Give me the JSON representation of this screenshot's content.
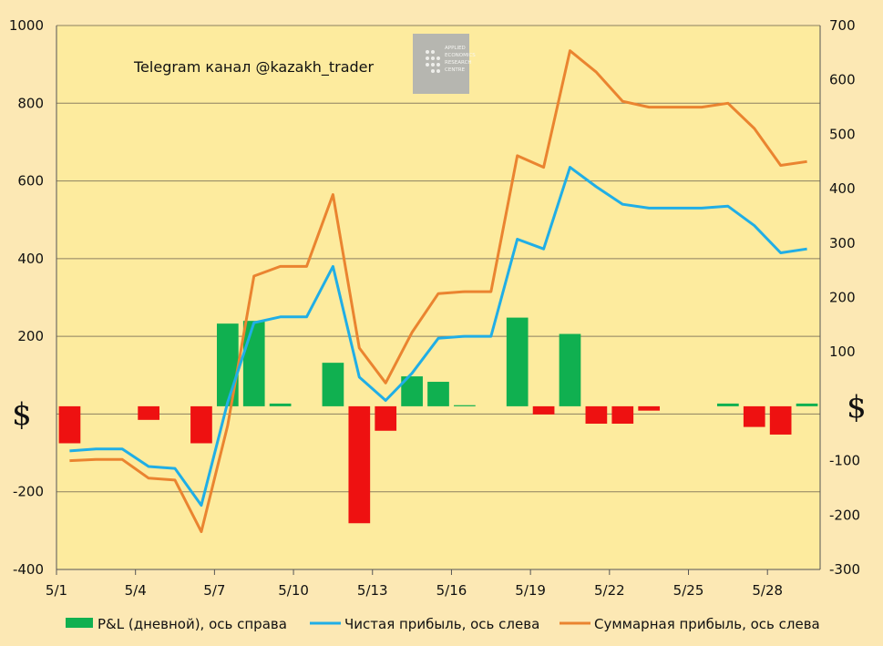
{
  "watermark": {
    "text": "Telegram канал @kazakh_trader",
    "logo_text": "APPLIED ECONOMICS RESEARCH CENTRE"
  },
  "currency_symbol": "$",
  "colors": {
    "outer_bg": "#fce8b4",
    "plot_bg": "#fdeb9e",
    "pnl_positive": "#10b050",
    "pnl_negative": "#ee1111",
    "net_profit": "#20aee6",
    "cumulative_profit": "#ea8430",
    "grid": "#8c8060"
  },
  "chart_data": {
    "type": "bar+line",
    "x_axis_labels": [
      "5/1",
      "5/4",
      "5/7",
      "5/10",
      "5/13",
      "5/16",
      "5/19",
      "5/22",
      "5/25",
      "5/28"
    ],
    "x_dates": [
      "5/1",
      "5/2",
      "5/3",
      "5/4",
      "5/5",
      "5/6",
      "5/7",
      "5/8",
      "5/9",
      "5/10",
      "5/11",
      "5/12",
      "5/13",
      "5/14",
      "5/15",
      "5/16",
      "5/17",
      "5/18",
      "5/19",
      "5/20",
      "5/21",
      "5/22",
      "5/23",
      "5/24",
      "5/25",
      "5/26",
      "5/27",
      "5/28",
      "5/29"
    ],
    "y_left": {
      "min": -400,
      "max": 1000,
      "ticks": [
        -400,
        -200,
        0,
        200,
        400,
        600,
        800,
        1000
      ]
    },
    "y_right": {
      "min": -300,
      "max": 700,
      "ticks": [
        -300,
        -200,
        -100,
        0,
        100,
        200,
        300,
        400,
        500,
        600,
        700
      ]
    },
    "grid": true,
    "legend_position": "bottom",
    "series": [
      {
        "name": "P&L (дневной), ось справа",
        "type": "bar",
        "axis": "right",
        "values": [
          -68,
          0,
          0,
          -25,
          0,
          -68,
          152,
          157,
          5,
          0,
          80,
          -215,
          -45,
          55,
          45,
          2,
          0,
          163,
          -15,
          133,
          -32,
          -32,
          -8,
          0,
          0,
          5,
          -38,
          -52,
          5
        ]
      },
      {
        "name": "Чистая прибыль, ось слева",
        "type": "line",
        "axis": "left",
        "values": [
          -95,
          -90,
          -90,
          -135,
          -140,
          -235,
          30,
          235,
          250,
          250,
          380,
          95,
          35,
          105,
          195,
          200,
          200,
          450,
          425,
          635,
          585,
          540,
          530,
          530,
          530,
          535,
          485,
          415,
          425
        ]
      },
      {
        "name": "Суммарная прибыль, ось слева",
        "type": "line",
        "axis": "left",
        "values": [
          -120,
          -117,
          -117,
          -165,
          -170,
          -303,
          -30,
          355,
          380,
          380,
          565,
          170,
          80,
          210,
          310,
          315,
          315,
          665,
          635,
          935,
          880,
          805,
          790,
          790,
          790,
          800,
          735,
          640,
          650
        ]
      }
    ]
  }
}
